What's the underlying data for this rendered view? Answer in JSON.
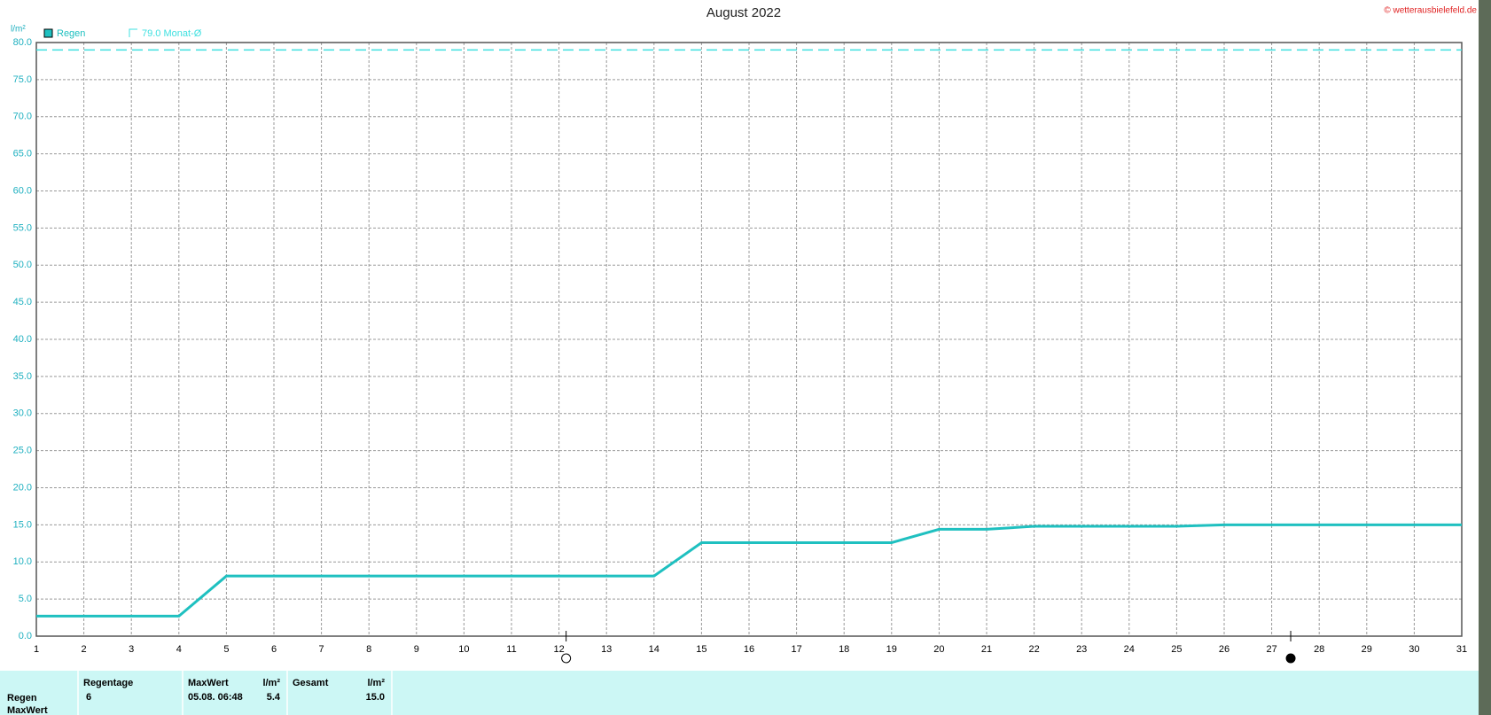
{
  "chart_data": {
    "type": "line",
    "title": "August 2022",
    "copyright": "© wetterausbielefeld.de",
    "y_label": "l/m²",
    "x": [
      1,
      2,
      3,
      4,
      5,
      6,
      7,
      8,
      9,
      10,
      11,
      12,
      13,
      14,
      15,
      16,
      17,
      18,
      19,
      20,
      21,
      22,
      23,
      24,
      25,
      26,
      27,
      28,
      29,
      30,
      31
    ],
    "series": [
      {
        "name": "Regen",
        "color": "#1fc0c0",
        "values": [
          2.7,
          2.7,
          2.7,
          2.7,
          8.1,
          8.1,
          8.1,
          8.1,
          8.1,
          8.1,
          8.1,
          8.1,
          8.1,
          8.1,
          12.6,
          12.6,
          12.6,
          12.6,
          12.6,
          14.4,
          14.4,
          14.8,
          14.8,
          14.8,
          14.8,
          15.0,
          15.0,
          15.0,
          15.0,
          15.0,
          15.0
        ]
      }
    ],
    "reference_line": {
      "value": 79.0,
      "label": "79.0 Monat-Ø",
      "color": "#3ee0e0"
    },
    "xlim": [
      1,
      31
    ],
    "xticks": [
      1,
      2,
      3,
      4,
      5,
      6,
      7,
      8,
      9,
      10,
      11,
      12,
      13,
      14,
      15,
      16,
      17,
      18,
      19,
      20,
      21,
      22,
      23,
      24,
      25,
      26,
      27,
      28,
      29,
      30,
      31
    ],
    "ylim": [
      0,
      80
    ],
    "yticks": [
      {
        "value": 0,
        "label": "0.0"
      },
      {
        "value": 5,
        "label": "5.0"
      },
      {
        "value": 10,
        "label": "10.0"
      },
      {
        "value": 15,
        "label": "15.0"
      },
      {
        "value": 20,
        "label": "20.0"
      },
      {
        "value": 25,
        "label": "25.0"
      },
      {
        "value": 30,
        "label": "30.0"
      },
      {
        "value": 35,
        "label": "35.0"
      },
      {
        "value": 40,
        "label": "40.0"
      },
      {
        "value": 45,
        "label": "45.0"
      },
      {
        "value": 50,
        "label": "50.0"
      },
      {
        "value": 55,
        "label": "55.0"
      },
      {
        "value": 60,
        "label": "60.0"
      },
      {
        "value": 65,
        "label": "65.0"
      },
      {
        "value": 70,
        "label": "70.0"
      },
      {
        "value": 75,
        "label": "75.0"
      },
      {
        "value": 80,
        "label": "80.0"
      }
    ],
    "grid": true,
    "full_moon_x": 12.15,
    "new_moon_x": 27.4
  },
  "table": {
    "header": {
      "regentage": "Regentage",
      "maxwert": "MaxWert",
      "maxwert_unit": "l/m²",
      "gesamt": "Gesamt",
      "gesamt_unit": "l/m²"
    },
    "rows": [
      {
        "label": "Regen",
        "regentage": "6",
        "maxwert_time": "05.08.  06:48",
        "maxwert": "5.4",
        "gesamt": "15.0"
      },
      {
        "label": "MaxWert"
      }
    ]
  }
}
